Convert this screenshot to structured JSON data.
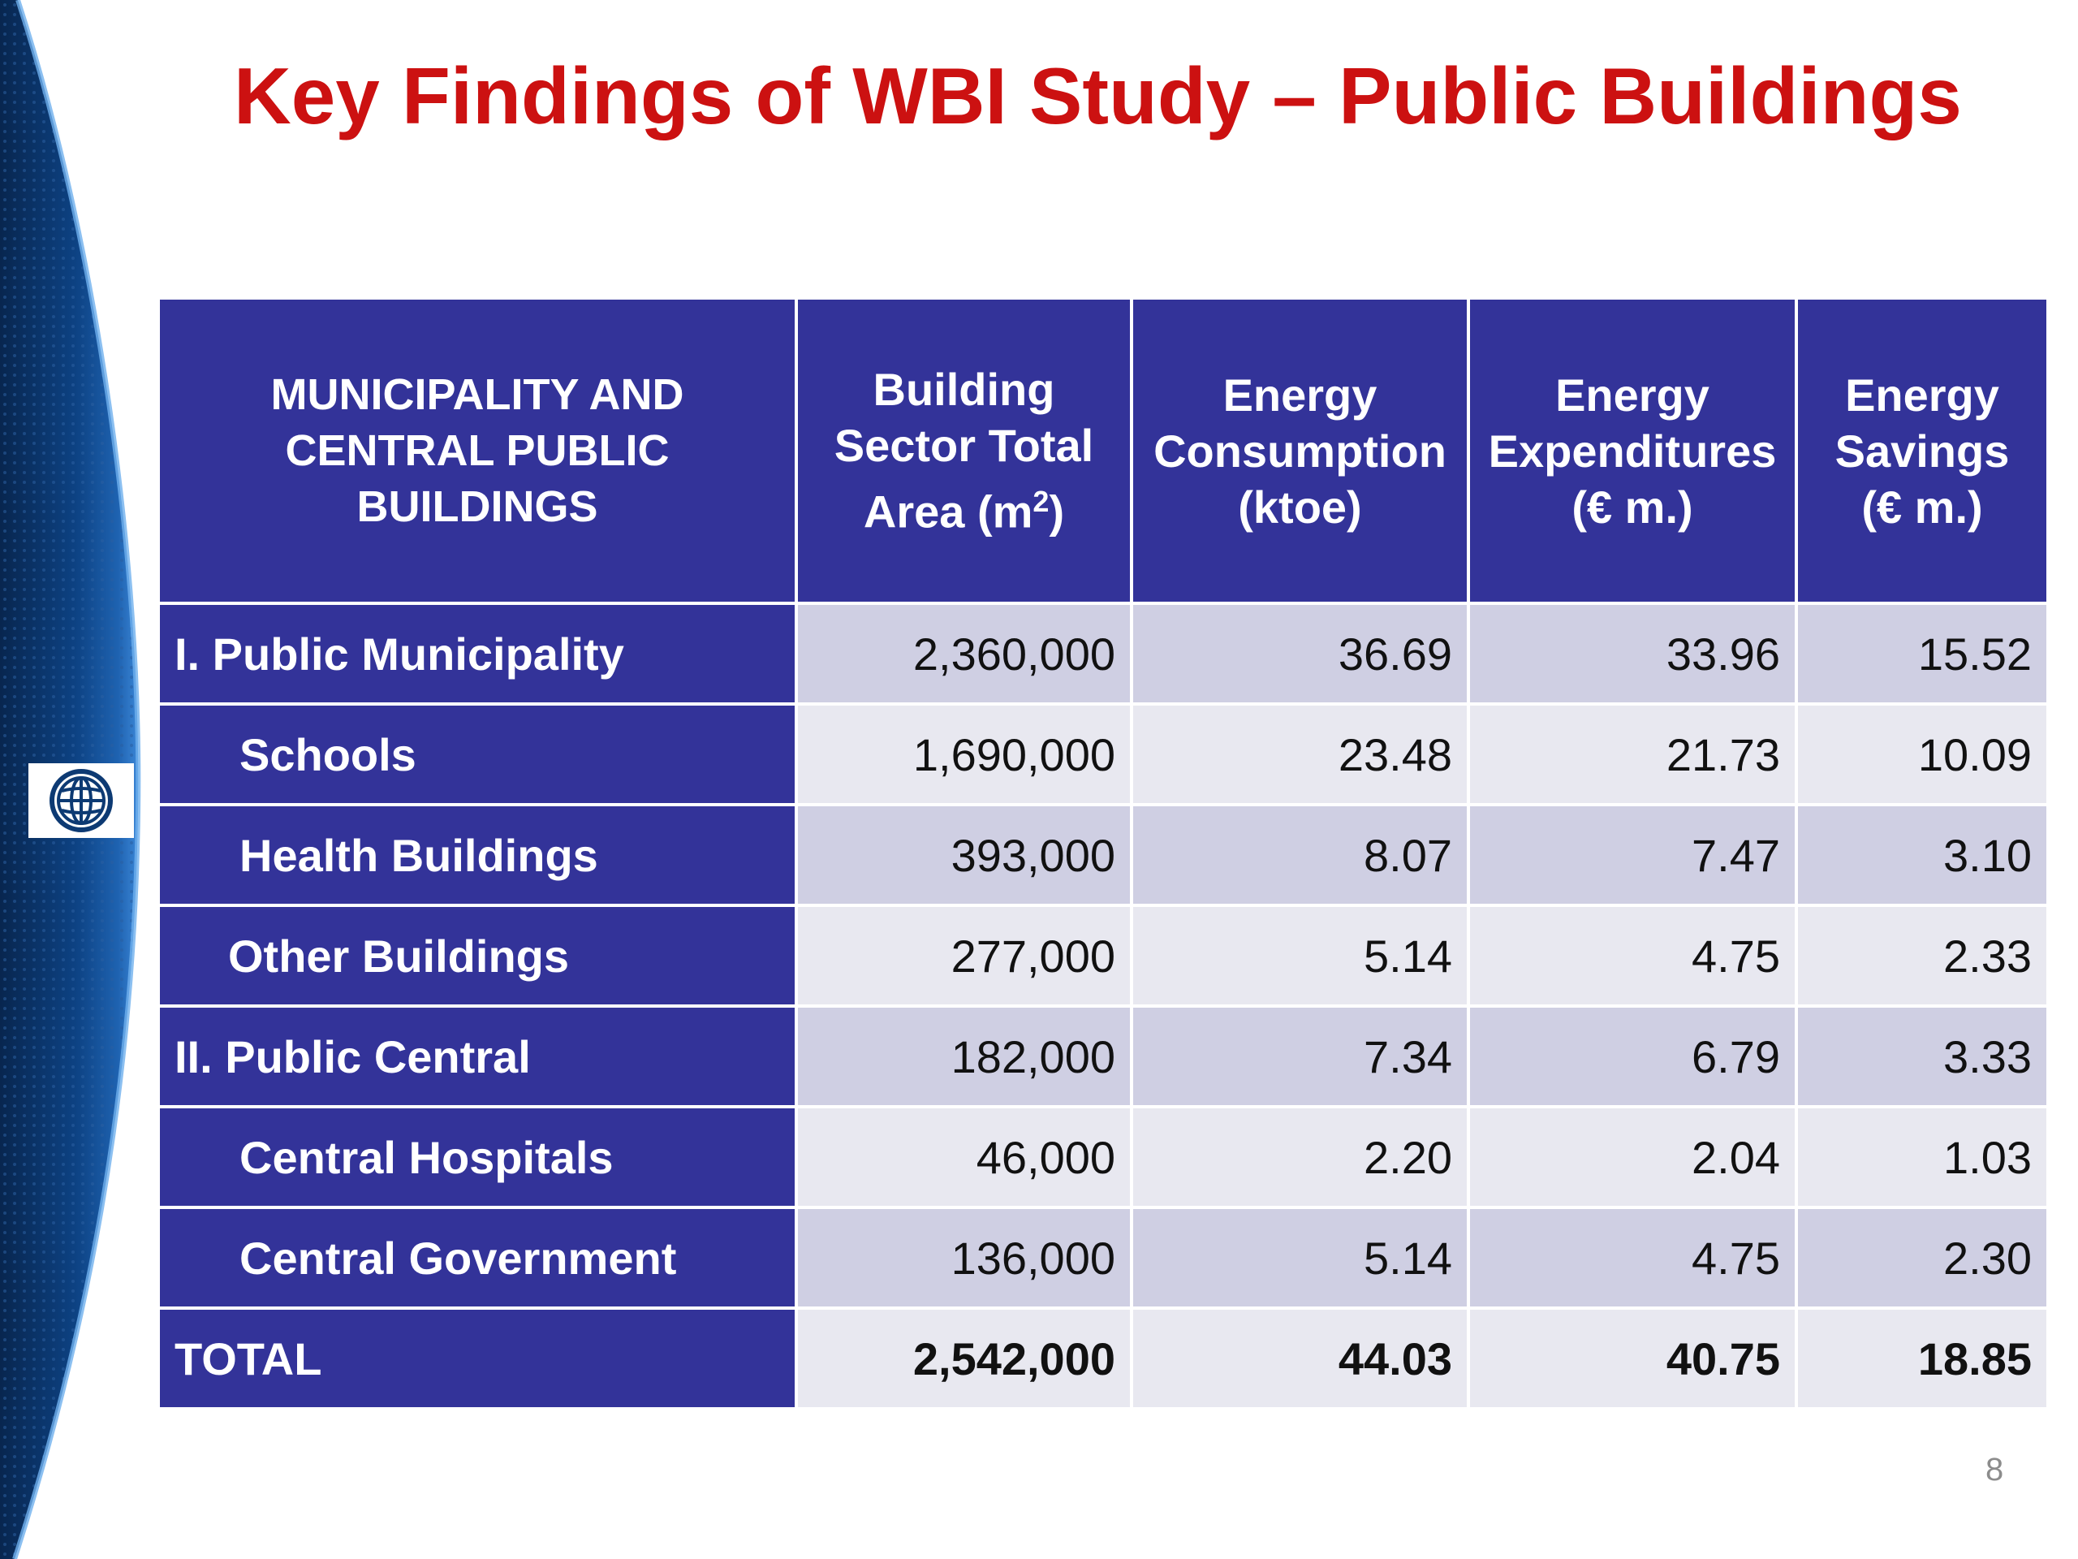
{
  "slide": {
    "title": "Key Findings of WBI Study – Public Buildings",
    "page_number": "8",
    "logo_icon": "world-globe-icon",
    "colors": {
      "title": "#cc1111",
      "header_fill": "#333399",
      "row_fill_dark": "#cfcfe3",
      "row_fill_light": "#e8e8f0",
      "side_band": "#0b3c78"
    }
  },
  "table": {
    "headers": {
      "category_line1": "MUNICIPALITY AND",
      "category_line2": "CENTRAL PUBLIC",
      "category_line3": "BUILDINGS",
      "area_line1": "Building",
      "area_line2": "Sector Total",
      "area_line3_text": "Area (m",
      "area_line3_sup": "2",
      "area_line3_close": ")",
      "consumption_line1": "Energy",
      "consumption_line2": "Consumption",
      "consumption_line3": "(ktoe)",
      "expenditures_line1": "Energy",
      "expenditures_line2": "Expenditures",
      "expenditures_line3": "(€ m.)",
      "savings_line1": "Energy",
      "savings_line2": "Savings",
      "savings_line3": "(€ m.)"
    },
    "rows": [
      {
        "label": "I. Public Municipality",
        "area": "2,360,000",
        "consumption": "36.69",
        "expenditures": "33.96",
        "savings": "15.52"
      },
      {
        "label": "Schools",
        "area": "1,690,000",
        "consumption": "23.48",
        "expenditures": "21.73",
        "savings": "10.09"
      },
      {
        "label": "Health Buildings",
        "area": "393,000",
        "consumption": "8.07",
        "expenditures": "7.47",
        "savings": "3.10"
      },
      {
        "label": "Other Buildings",
        "area": "277,000",
        "consumption": "5.14",
        "expenditures": "4.75",
        "savings": "2.33"
      },
      {
        "label": "II. Public Central",
        "area": "182,000",
        "consumption": "7.34",
        "expenditures": "6.79",
        "savings": "3.33"
      },
      {
        "label": "Central Hospitals",
        "area": "46,000",
        "consumption": "2.20",
        "expenditures": "2.04",
        "savings": "1.03"
      },
      {
        "label": "Central Government",
        "area": "136,000",
        "consumption": "5.14",
        "expenditures": "4.75",
        "savings": "2.30"
      },
      {
        "label": "TOTAL",
        "area": "2,542,000",
        "consumption": "44.03",
        "expenditures": "40.75",
        "savings": "18.85"
      }
    ]
  }
}
